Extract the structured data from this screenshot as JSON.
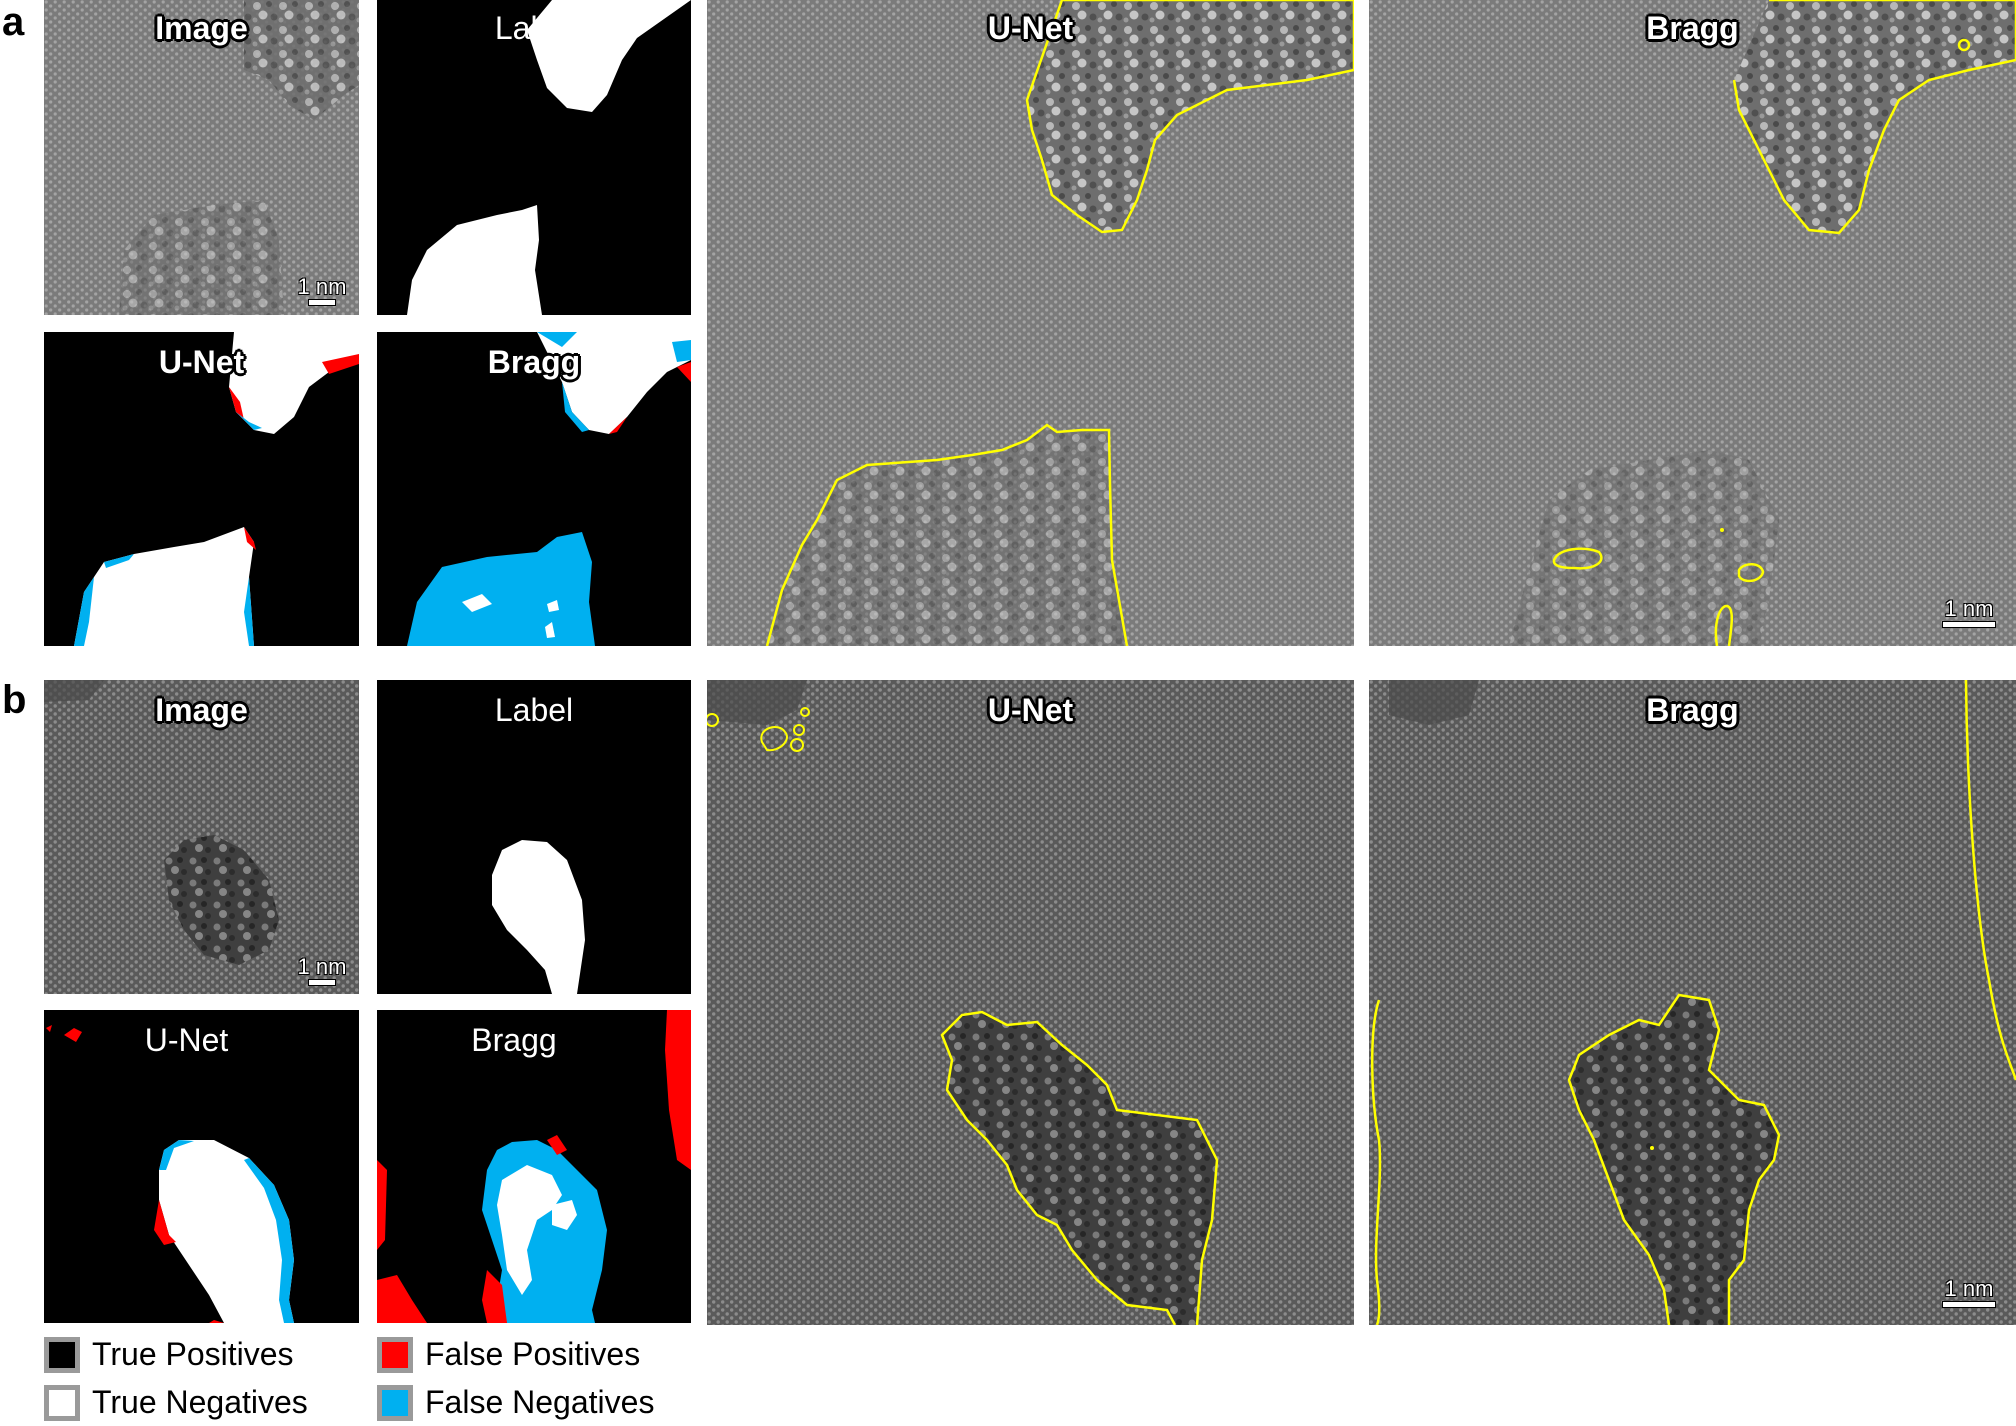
{
  "panels": {
    "a": {
      "letter": "a",
      "image_title": "Image",
      "label_title": "Label",
      "unet_title": "U-Net",
      "bragg_title": "Bragg",
      "unet_overlay_title": "U-Net",
      "bragg_overlay_title": "Bragg",
      "scale_small": "1 nm",
      "scale_large": "1 nm"
    },
    "b": {
      "letter": "b",
      "image_title": "Image",
      "label_title": "Label",
      "unet_title": "U-Net",
      "bragg_title": "Bragg",
      "unet_overlay_title": "U-Net",
      "bragg_overlay_title": "Bragg",
      "scale_small": "1 nm",
      "scale_large": "1 nm"
    }
  },
  "legend": {
    "true_positives": "True Positives",
    "true_negatives": "True Negatives",
    "false_positives": "False Positives",
    "false_negatives": "False Negatives"
  },
  "colors": {
    "true_positive": "#000000",
    "true_negative": "#ffffff",
    "false_positive": "#ff0000",
    "false_negative": "#00b0f0",
    "contour": "#ffff00",
    "swatch_border": "#9a9a9a"
  }
}
